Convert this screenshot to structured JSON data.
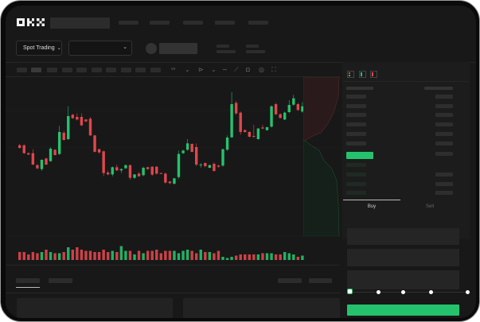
{
  "header": {
    "logo": "OKX"
  },
  "market": {
    "mode_label": "Spot Trading"
  },
  "trade": {
    "tabs": [
      {
        "label": "Buy",
        "active": true
      },
      {
        "label": "Sell",
        "active": false
      }
    ],
    "slider_percent": 0
  },
  "colors": {
    "up": "#25c26e",
    "down": "#e0474c",
    "bg": "#181818"
  },
  "chart_data": {
    "type": "candlestick",
    "candles": [
      [
        785,
        790,
        772,
        775
      ],
      [
        785,
        788,
        752,
        755
      ],
      [
        755,
        758,
        748,
        750
      ],
      [
        755,
        770,
        710,
        712
      ],
      [
        710,
        714,
        694,
        698
      ],
      [
        695,
        732,
        688,
        730
      ],
      [
        735,
        738,
        710,
        712
      ],
      [
        725,
        778,
        722,
        772
      ],
      [
        768,
        770,
        746,
        748
      ],
      [
        752,
        858,
        748,
        835
      ],
      [
        832,
        840,
        802,
        805
      ],
      [
        808,
        932,
        805,
        895
      ],
      [
        900,
        904,
        884,
        887
      ],
      [
        892,
        906,
        878,
        882
      ],
      [
        892,
        906,
        858,
        860
      ],
      [
        882,
        884,
        872,
        875
      ],
      [
        885,
        892,
        820,
        822
      ],
      [
        822,
        824,
        758,
        760
      ],
      [
        770,
        772,
        752,
        758
      ],
      [
        762,
        765,
        668,
        680
      ],
      [
        682,
        690,
        672,
        675
      ],
      [
        675,
        705,
        668,
        702
      ],
      [
        702,
        712,
        688,
        690
      ],
      [
        690,
        698,
        680,
        695
      ],
      [
        698,
        712,
        696,
        710
      ],
      [
        710,
        712,
        655,
        662
      ],
      [
        662,
        676,
        658,
        675
      ],
      [
        678,
        684,
        666,
        668
      ],
      [
        672,
        704,
        668,
        700
      ],
      [
        702,
        704,
        692,
        695
      ],
      [
        704,
        706,
        670,
        674
      ],
      [
        704,
        706,
        674,
        678
      ],
      [
        680,
        682,
        676,
        678
      ],
      [
        678,
        682,
        640,
        644
      ],
      [
        648,
        650,
        638,
        642
      ],
      [
        640,
        662,
        636,
        660
      ],
      [
        665,
        765,
        658,
        752
      ],
      [
        755,
        768,
        752,
        765
      ],
      [
        768,
        808,
        764,
        792
      ],
      [
        790,
        792,
        758,
        760
      ],
      [
        778,
        792,
        706,
        712
      ],
      [
        710,
        718,
        700,
        712
      ],
      [
        718,
        720,
        702,
        706
      ],
      [
        700,
        712,
        698,
        710
      ],
      [
        715,
        720,
        685,
        688
      ],
      [
        708,
        712,
        700,
        704
      ],
      [
        708,
        772,
        704,
        770
      ],
      [
        768,
        822,
        764,
        814
      ],
      [
        815,
        985,
        812,
        940
      ],
      [
        945,
        952,
        900,
        905
      ],
      [
        908,
        912,
        825,
        835
      ],
      [
        842,
        845,
        832,
        835
      ],
      [
        835,
        838,
        815,
        817
      ],
      [
        820,
        862,
        812,
        817
      ],
      [
        808,
        850,
        806,
        848
      ],
      [
        852,
        862,
        846,
        848
      ],
      [
        842,
        855,
        840,
        853
      ],
      [
        855,
        935,
        852,
        932
      ],
      [
        940,
        945,
        898,
        902
      ],
      [
        902,
        906,
        886,
        888
      ],
      [
        882,
        912,
        880,
        908
      ],
      [
        910,
        955,
        906,
        937
      ],
      [
        938,
        975,
        934,
        962
      ],
      [
        940,
        945,
        915,
        918
      ],
      [
        912,
        948,
        908,
        932
      ]
    ],
    "volumes": [
      6,
      6,
      4,
      6,
      5,
      6,
      8,
      6,
      5,
      5,
      6,
      10,
      8,
      10,
      8,
      7,
      7,
      6,
      6,
      8,
      6,
      7,
      6,
      11,
      7,
      7,
      4,
      7,
      5,
      7,
      7,
      8,
      5,
      7,
      7,
      7,
      5,
      7,
      8,
      7,
      5,
      8,
      6,
      6,
      5,
      7,
      2,
      1,
      2,
      3,
      4,
      4,
      4,
      4,
      4,
      5,
      5,
      5,
      4,
      4,
      6,
      5,
      4,
      2,
      3
    ]
  }
}
